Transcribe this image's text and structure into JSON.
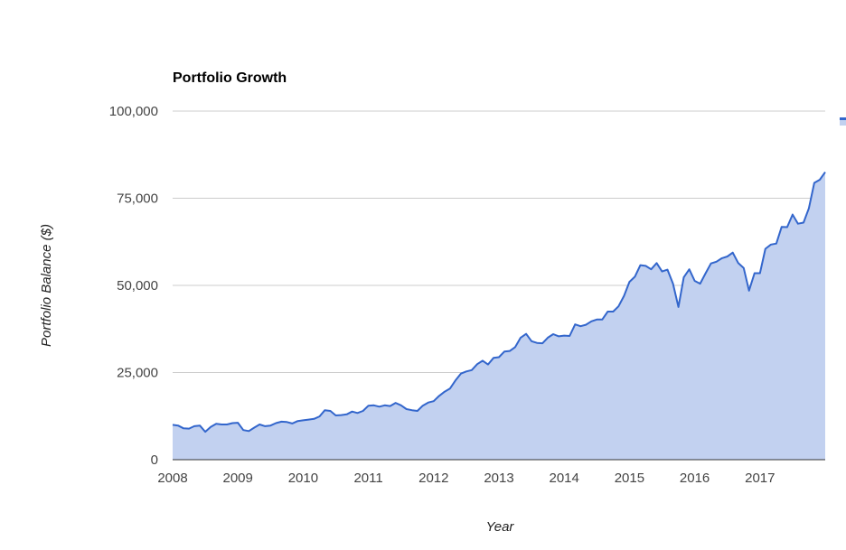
{
  "chart_data": {
    "type": "area",
    "title": "Portfolio Growth",
    "xlabel": "Year",
    "ylabel": "Portfolio Balance ($)",
    "xlim": [
      2008.0,
      2018.0
    ],
    "ylim": [
      0,
      100000
    ],
    "grid": true,
    "legend": "right",
    "colors": {
      "line": "#3366cc",
      "fill": "#c2d1f0",
      "grid": "#cccccc",
      "baseline": "#333333"
    },
    "x_ticks": [
      {
        "value": 2008,
        "label": "2008"
      },
      {
        "value": 2009,
        "label": "2009"
      },
      {
        "value": 2010,
        "label": "2010"
      },
      {
        "value": 2011,
        "label": "2011"
      },
      {
        "value": 2012,
        "label": "2012"
      },
      {
        "value": 2013,
        "label": "2013"
      },
      {
        "value": 2014,
        "label": "2014"
      },
      {
        "value": 2015,
        "label": "2015"
      },
      {
        "value": 2016,
        "label": "2016"
      },
      {
        "value": 2017,
        "label": "2017"
      }
    ],
    "y_ticks": [
      {
        "value": 0,
        "label": "0"
      },
      {
        "value": 25000,
        "label": "25,000"
      },
      {
        "value": 50000,
        "label": "50,000"
      },
      {
        "value": 75000,
        "label": "75,000"
      },
      {
        "value": 100000,
        "label": "100,000"
      }
    ],
    "series": [
      {
        "x": [
          2008.0,
          2008.083,
          2008.167,
          2008.25,
          2008.333,
          2008.417,
          2008.5,
          2008.583,
          2008.667,
          2008.75,
          2008.833,
          2008.917,
          2009.0,
          2009.083,
          2009.167,
          2009.25,
          2009.333,
          2009.417,
          2009.5,
          2009.583,
          2009.667,
          2009.75,
          2009.833,
          2009.917,
          2010.0,
          2010.083,
          2010.167,
          2010.25,
          2010.333,
          2010.417,
          2010.5,
          2010.583,
          2010.667,
          2010.75,
          2010.833,
          2010.917,
          2011.0,
          2011.083,
          2011.167,
          2011.25,
          2011.333,
          2011.417,
          2011.5,
          2011.583,
          2011.667,
          2011.75,
          2011.833,
          2011.917,
          2012.0,
          2012.083,
          2012.167,
          2012.25,
          2012.333,
          2012.417,
          2012.5,
          2012.583,
          2012.667,
          2012.75,
          2012.833,
          2012.917,
          2013.0,
          2013.083,
          2013.167,
          2013.25,
          2013.333,
          2013.417,
          2013.5,
          2013.583,
          2013.667,
          2013.75,
          2013.833,
          2013.917,
          2014.0,
          2014.083,
          2014.167,
          2014.25,
          2014.333,
          2014.417,
          2014.5,
          2014.583,
          2014.667,
          2014.75,
          2014.833,
          2014.917,
          2015.0,
          2015.083,
          2015.167,
          2015.25,
          2015.333,
          2015.417,
          2015.5,
          2015.583,
          2015.667,
          2015.75,
          2015.833,
          2015.917,
          2016.0,
          2016.083,
          2016.167,
          2016.25,
          2016.333,
          2016.417,
          2016.5,
          2016.583,
          2016.667,
          2016.75,
          2016.833,
          2016.917,
          2017.0,
          2017.083,
          2017.167,
          2017.25,
          2017.333,
          2017.417,
          2017.5,
          2017.583,
          2017.667,
          2017.75,
          2017.833,
          2017.917,
          2018.0
        ],
        "values": [
          10000,
          9800,
          9000,
          8900,
          9600,
          9800,
          8000,
          9400,
          10300,
          10100,
          10100,
          10500,
          10600,
          8500,
          8200,
          9200,
          10100,
          9600,
          9800,
          10500,
          10900,
          10800,
          10400,
          11100,
          11300,
          11500,
          11700,
          12400,
          14200,
          14000,
          12700,
          12800,
          13000,
          13800,
          13400,
          14000,
          15500,
          15600,
          15200,
          15600,
          15400,
          16300,
          15600,
          14500,
          14200,
          14000,
          15500,
          16400,
          16800,
          18300,
          19500,
          20400,
          22700,
          24700,
          25300,
          25700,
          27400,
          28400,
          27300,
          29200,
          29400,
          31000,
          31200,
          32300,
          35000,
          36100,
          34000,
          33500,
          33400,
          35000,
          36000,
          35400,
          35600,
          35500,
          38800,
          38300,
          38700,
          39700,
          40200,
          40200,
          42500,
          42500,
          44000,
          47000,
          51000,
          52500,
          55800,
          55600,
          54600,
          56400,
          54000,
          54500,
          50500,
          43800,
          52300,
          54600,
          51300,
          50500,
          53500,
          56300,
          56800,
          57800,
          58300,
          59400,
          56400,
          55000,
          48500,
          53500,
          53500,
          60500,
          61700,
          62000,
          66800,
          66700,
          70300,
          67700,
          68000,
          72100,
          79400,
          80300,
          82500
        ]
      }
    ]
  }
}
